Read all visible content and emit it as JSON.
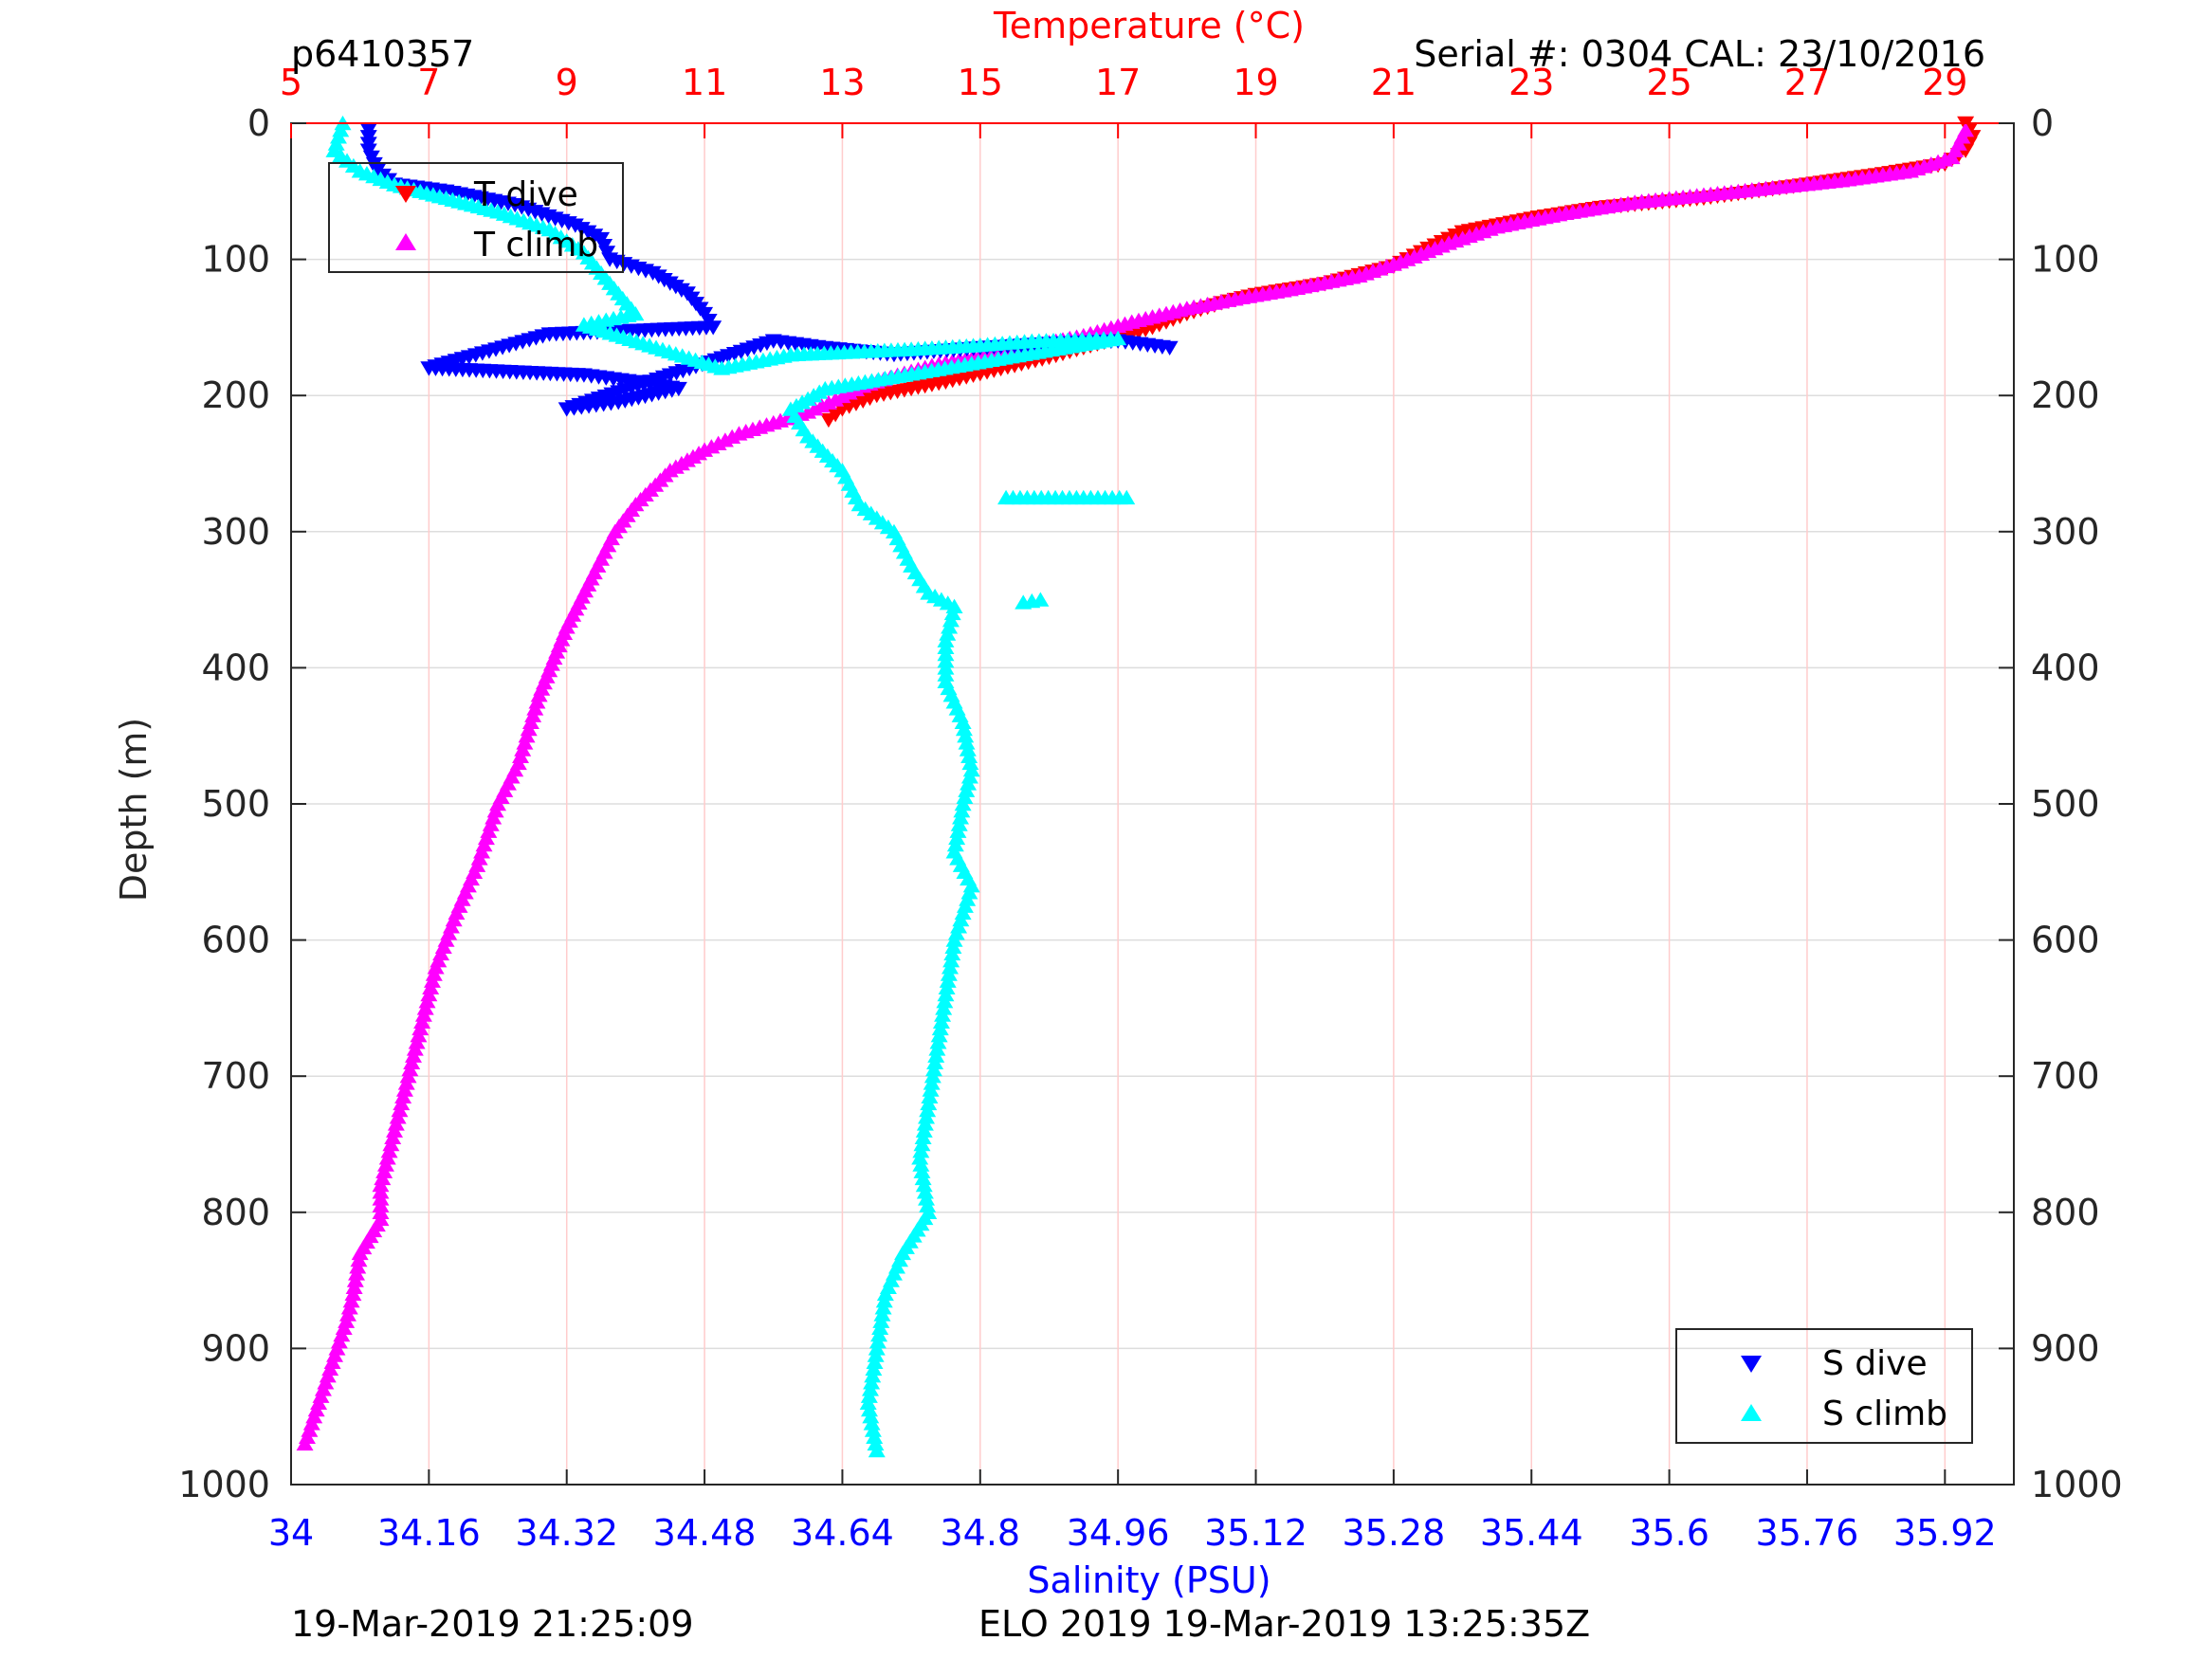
{
  "header": {
    "profile_id": "p6410357",
    "serial": "Serial #: 0304  CAL: 23/10/2016"
  },
  "footer": {
    "left_timestamp": "19-Mar-2019 21:25:09",
    "right_info": "ELO 2019 19-Mar-2019 13:25:35Z"
  },
  "colors": {
    "t_dive": "#ff0000",
    "t_climb": "#ff00ff",
    "s_dive": "#0000ff",
    "s_climb": "#00ffff",
    "temperature_axis": "#ff0000",
    "salinity_axis": "#0000ff",
    "temperature_grid": "#ffcccc",
    "depth_grid": "#dddddd"
  },
  "chart_data": {
    "type": "scatter",
    "axes": {
      "temperature": {
        "label": "Temperature (°C)",
        "position": "top",
        "range": [
          5,
          30
        ],
        "ticks": [
          "5",
          "7",
          "9",
          "11",
          "13",
          "15",
          "17",
          "19",
          "21",
          "23",
          "25",
          "27",
          "29"
        ],
        "grid": true
      },
      "salinity": {
        "label": "Salinity (PSU)",
        "position": "bottom",
        "range": [
          34,
          36
        ],
        "ticks": [
          "34",
          "34.16",
          "34.32",
          "34.48",
          "34.64",
          "34.8",
          "34.96",
          "35.12",
          "35.28",
          "35.44",
          "35.6",
          "35.76",
          "35.92"
        ]
      },
      "depth": {
        "label": "Depth (m)",
        "position": "left and right",
        "range": [
          0,
          1000
        ],
        "reversed": true,
        "ticks": [
          "0",
          "100",
          "200",
          "300",
          "400",
          "500",
          "600",
          "700",
          "800",
          "900",
          "1000"
        ],
        "grid": true
      }
    },
    "legends": [
      {
        "placement": "top-left",
        "entries": [
          "T dive",
          "T climb"
        ]
      },
      {
        "placement": "bottom-right",
        "entries": [
          "S dive",
          "S climb"
        ]
      }
    ],
    "series": [
      {
        "name": "T dive",
        "axis": "temperature",
        "marker": "triangle-down",
        "points": [
          [
            29.3,
            0
          ],
          [
            29.4,
            10
          ],
          [
            29.3,
            20
          ],
          [
            29.0,
            30
          ],
          [
            28.0,
            38
          ],
          [
            27.0,
            45
          ],
          [
            25.5,
            55
          ],
          [
            24.0,
            62
          ],
          [
            23.0,
            70
          ],
          [
            22.0,
            80
          ],
          [
            21.5,
            92
          ],
          [
            21.0,
            105
          ],
          [
            20.0,
            118
          ],
          [
            19.0,
            126
          ],
          [
            18.5,
            132
          ],
          [
            18.0,
            140
          ],
          [
            17.5,
            150
          ],
          [
            17.0,
            158
          ],
          [
            16.5,
            165
          ],
          [
            16.0,
            172
          ],
          [
            15.5,
            178
          ],
          [
            15.0,
            184
          ],
          [
            14.5,
            190
          ],
          [
            14.0,
            195
          ],
          [
            13.5,
            200
          ],
          [
            13.0,
            210
          ],
          [
            12.8,
            218
          ]
        ]
      },
      {
        "name": "T climb",
        "axis": "temperature",
        "marker": "triangle-up",
        "points": [
          [
            29.3,
            5
          ],
          [
            29.1,
            25
          ],
          [
            28.5,
            35
          ],
          [
            27.5,
            42
          ],
          [
            26.0,
            50
          ],
          [
            24.5,
            58
          ],
          [
            23.5,
            66
          ],
          [
            22.5,
            76
          ],
          [
            21.8,
            88
          ],
          [
            21.2,
            100
          ],
          [
            20.5,
            112
          ],
          [
            19.5,
            122
          ],
          [
            18.8,
            128
          ],
          [
            18.0,
            136
          ],
          [
            17.2,
            146
          ],
          [
            16.5,
            156
          ],
          [
            15.8,
            163
          ],
          [
            15.0,
            170
          ],
          [
            14.3,
            178
          ],
          [
            13.8,
            185
          ],
          [
            13.3,
            193
          ],
          [
            12.9,
            203
          ],
          [
            12.5,
            212
          ],
          [
            12.0,
            220
          ],
          [
            11.5,
            228
          ],
          [
            11.0,
            240
          ],
          [
            10.5,
            255
          ],
          [
            10.0,
            280
          ],
          [
            9.7,
            300
          ],
          [
            9.4,
            330
          ],
          [
            9.0,
            370
          ],
          [
            8.6,
            420
          ],
          [
            8.3,
            470
          ],
          [
            8.0,
            500
          ],
          [
            7.7,
            545
          ],
          [
            7.4,
            580
          ],
          [
            7.1,
            620
          ],
          [
            6.9,
            660
          ],
          [
            6.7,
            700
          ],
          [
            6.5,
            740
          ],
          [
            6.3,
            780
          ],
          [
            6.3,
            805
          ],
          [
            6.0,
            830
          ],
          [
            5.9,
            860
          ],
          [
            5.8,
            880
          ],
          [
            5.6,
            910
          ],
          [
            5.4,
            940
          ],
          [
            5.2,
            970
          ]
        ]
      },
      {
        "name": "S dive",
        "axis": "salinity",
        "marker": "triangle-down",
        "points": [
          [
            34.09,
            5
          ],
          [
            34.09,
            20
          ],
          [
            34.1,
            35
          ],
          [
            34.12,
            45
          ],
          [
            34.18,
            50
          ],
          [
            34.26,
            60
          ],
          [
            34.33,
            75
          ],
          [
            34.36,
            85
          ],
          [
            34.37,
            100
          ],
          [
            34.42,
            110
          ],
          [
            34.46,
            125
          ],
          [
            34.48,
            140
          ],
          [
            34.49,
            150
          ],
          [
            34.3,
            155
          ],
          [
            34.16,
            180
          ],
          [
            34.34,
            185
          ],
          [
            34.4,
            190
          ],
          [
            34.45,
            195
          ],
          [
            34.38,
            205
          ],
          [
            34.32,
            210
          ],
          [
            34.56,
            160
          ],
          [
            34.62,
            165
          ],
          [
            34.7,
            170
          ],
          [
            34.8,
            165
          ],
          [
            34.88,
            162
          ],
          [
            34.96,
            160
          ],
          [
            35.02,
            165
          ]
        ]
      },
      {
        "name": "S climb",
        "axis": "salinity",
        "marker": "triangle-up",
        "points": [
          [
            34.06,
            0
          ],
          [
            34.05,
            20
          ],
          [
            34.08,
            35
          ],
          [
            34.12,
            45
          ],
          [
            34.18,
            55
          ],
          [
            34.24,
            65
          ],
          [
            34.3,
            78
          ],
          [
            34.34,
            95
          ],
          [
            34.36,
            110
          ],
          [
            34.38,
            125
          ],
          [
            34.4,
            140
          ],
          [
            34.34,
            148
          ],
          [
            34.5,
            180
          ],
          [
            34.58,
            170
          ],
          [
            34.65,
            168
          ],
          [
            34.72,
            166
          ],
          [
            34.8,
            163
          ],
          [
            34.86,
            160
          ],
          [
            34.96,
            158
          ],
          [
            34.62,
            195
          ],
          [
            34.58,
            210
          ],
          [
            34.6,
            230
          ],
          [
            34.64,
            255
          ],
          [
            34.66,
            280
          ],
          [
            34.7,
            300
          ],
          [
            34.72,
            325
          ],
          [
            34.74,
            345
          ],
          [
            34.77,
            355
          ],
          [
            34.76,
            380
          ],
          [
            34.76,
            410
          ],
          [
            34.78,
            440
          ],
          [
            34.79,
            475
          ],
          [
            34.78,
            500
          ],
          [
            34.77,
            535
          ],
          [
            34.79,
            560
          ],
          [
            34.77,
            600
          ],
          [
            34.76,
            640
          ],
          [
            34.75,
            680
          ],
          [
            34.74,
            720
          ],
          [
            34.73,
            760
          ],
          [
            34.74,
            800
          ],
          [
            34.71,
            830
          ],
          [
            34.69,
            860
          ],
          [
            34.68,
            900
          ],
          [
            34.67,
            940
          ],
          [
            34.68,
            975
          ],
          [
            34.83,
            275
          ],
          [
            34.92,
            275
          ],
          [
            34.97,
            275
          ],
          [
            34.85,
            352
          ],
          [
            34.87,
            350
          ]
        ]
      }
    ]
  }
}
